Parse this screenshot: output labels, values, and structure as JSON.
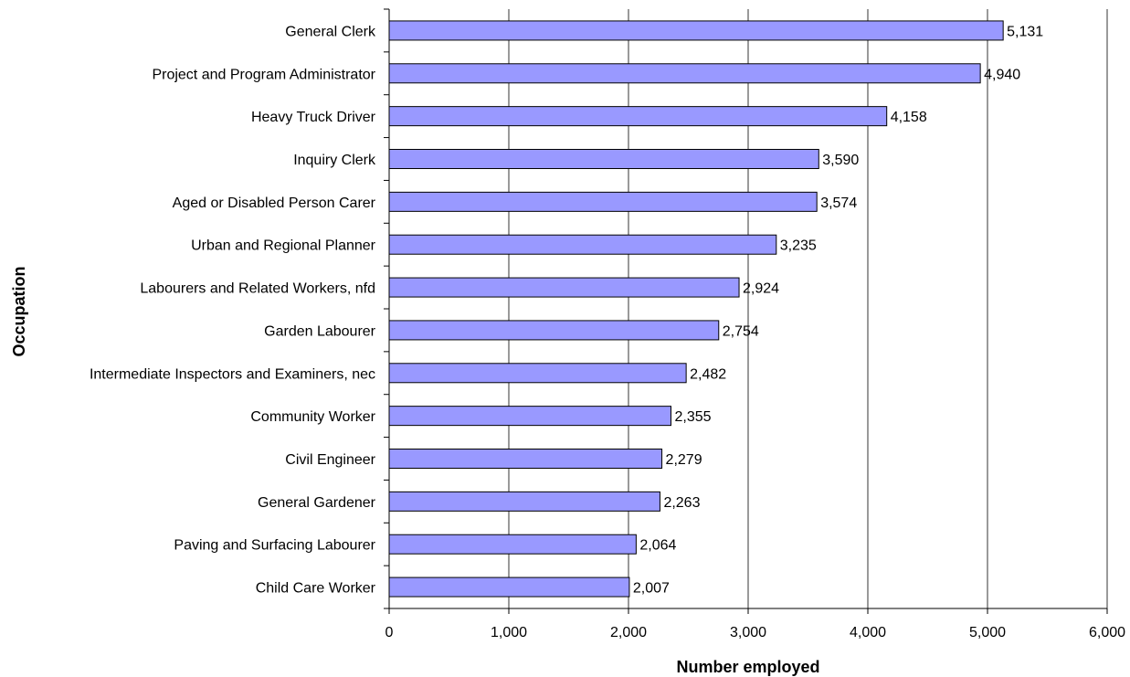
{
  "chart_data": {
    "type": "bar",
    "orientation": "horizontal",
    "title": "",
    "xlabel": "Number employed",
    "ylabel": "Occupation",
    "xlim": [
      0,
      6000
    ],
    "x_ticks": [
      "0",
      "1,000",
      "2,000",
      "3,000",
      "4,000",
      "5,000",
      "6,000"
    ],
    "grid": "vertical major gridlines",
    "legend": "none",
    "categories": [
      "General Clerk",
      "Project and Program Administrator",
      "Heavy Truck Driver",
      "Inquiry Clerk",
      "Aged or Disabled Person Carer",
      "Urban and Regional Planner",
      "Labourers and Related Workers, nfd",
      "Garden Labourer",
      "Intermediate Inspectors and Examiners, nec",
      "Community Worker",
      "Civil Engineer",
      "General Gardener",
      "Paving and Surfacing Labourer",
      "Child Care Worker"
    ],
    "values": [
      5131,
      4940,
      4158,
      3590,
      3574,
      3235,
      2924,
      2754,
      2482,
      2355,
      2279,
      2263,
      2064,
      2007
    ],
    "data_labels": [
      "5,131",
      "4,940",
      "4,158",
      "3,590",
      "3,574",
      "3,235",
      "2,924",
      "2,754",
      "2,482",
      "2,355",
      "2,279",
      "2,263",
      "2,064",
      "2,007"
    ],
    "colors": {
      "bar_fill": "#9999FF",
      "bar_stroke": "#000000",
      "gridline": "#000000",
      "axis": "#000000"
    }
  }
}
